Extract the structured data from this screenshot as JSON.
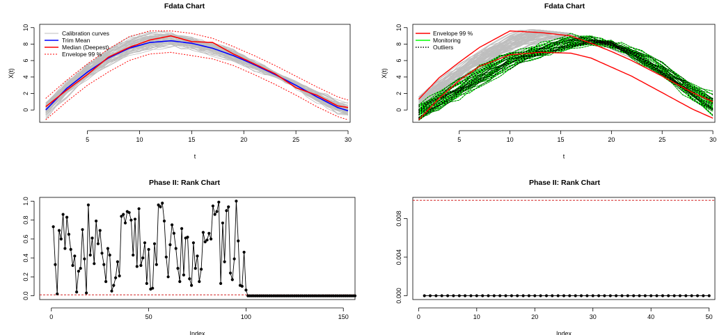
{
  "colors": {
    "calibration": "#bebebe",
    "trim_mean": "#0000ff",
    "median": "#ff0000",
    "envelope": "#ff0000",
    "monitoring": "#00ff00",
    "outliers": "#000000",
    "rank_line": "#000000",
    "limit_line": "#cd0000"
  },
  "chart_data": [
    {
      "type": "line",
      "title": "Fdata Chart",
      "xlabel": "t",
      "ylabel": "X(t)",
      "xlim": [
        1,
        30
      ],
      "ylim": [
        -1.5,
        10
      ],
      "xticks": [
        "5",
        "10",
        "15",
        "20",
        "25",
        "30"
      ],
      "yticks": [
        "0",
        "2",
        "4",
        "6",
        "8",
        "10"
      ],
      "legend": {
        "position": "top-left",
        "entries": [
          "Calibration curves",
          "Trim Mean",
          "Median (Deepest)",
          "Envelope 99 %"
        ]
      },
      "x": [
        1,
        3,
        5,
        7,
        9,
        11,
        13,
        15,
        17,
        19,
        21,
        23,
        25,
        27,
        29,
        30
      ],
      "series": [
        {
          "name": "Trim Mean",
          "values": [
            0.0,
            2.6,
            4.6,
            6.3,
            7.5,
            8.2,
            8.4,
            8.1,
            7.5,
            6.6,
            5.5,
            4.3,
            3.0,
            1.6,
            0.3,
            -0.1
          ]
        },
        {
          "name": "Median (Deepest)",
          "values": [
            0.4,
            2.4,
            4.3,
            6.4,
            7.6,
            8.5,
            9.0,
            8.3,
            8.2,
            6.8,
            5.6,
            4.4,
            2.7,
            1.8,
            0.5,
            0.3
          ]
        },
        {
          "name": "Envelope 99 % upper",
          "values": [
            1.4,
            3.6,
            5.6,
            7.4,
            8.9,
            9.6,
            9.6,
            9.3,
            8.7,
            7.7,
            6.6,
            5.4,
            4.1,
            2.8,
            1.6,
            1.2
          ]
        },
        {
          "name": "Envelope 99 % lower",
          "values": [
            -1.2,
            1.0,
            3.0,
            4.6,
            6.0,
            6.8,
            7.0,
            6.6,
            6.2,
            5.4,
            4.3,
            3.1,
            1.8,
            0.4,
            -0.8,
            -1.2
          ]
        }
      ]
    },
    {
      "type": "line",
      "title": "Fdata Chart",
      "xlabel": "t",
      "ylabel": "X(t)",
      "xlim": [
        1,
        30
      ],
      "ylim": [
        -1.5,
        10
      ],
      "xticks": [
        "5",
        "10",
        "15",
        "20",
        "25",
        "30"
      ],
      "yticks": [
        "0",
        "2",
        "4",
        "6",
        "8",
        "10"
      ],
      "legend": {
        "position": "top-left",
        "entries": [
          "Envelope 99 %",
          "Monitoring",
          "Outliers"
        ]
      },
      "x": [
        1,
        3,
        5,
        7,
        10,
        13,
        16,
        18,
        20,
        22,
        25,
        28,
        30
      ],
      "series": [
        {
          "name": "Envelope 99 % upper",
          "values": [
            1.3,
            3.9,
            5.8,
            7.6,
            9.6,
            9.4,
            9.0,
            8.1,
            7.1,
            6.0,
            4.1,
            2.1,
            1.0
          ]
        },
        {
          "name": "Envelope 99 % lower",
          "values": [
            -1.2,
            1.4,
            3.6,
            5.3,
            6.7,
            7.0,
            6.9,
            6.3,
            5.2,
            4.1,
            2.1,
            0.1,
            -1.0
          ]
        },
        {
          "name": "Monitoring (center)",
          "values": [
            -0.3,
            1.1,
            2.6,
            4.0,
            6.0,
            7.2,
            8.2,
            8.4,
            8.0,
            6.9,
            4.8,
            2.2,
            0.7
          ]
        }
      ]
    },
    {
      "type": "scatter",
      "title": "Phase II: Rank Chart",
      "xlabel": "Index",
      "ylabel": "",
      "xlim": [
        0,
        150
      ],
      "ylim": [
        0,
        1
      ],
      "xticks": [
        "0",
        "50",
        "100",
        "150"
      ],
      "yticks": [
        "0.0",
        "0.2",
        "0.4",
        "0.6",
        "0.8",
        "1.0"
      ],
      "control_limit": 0.01,
      "values": [
        0.73,
        0.33,
        0.02,
        0.69,
        0.6,
        0.86,
        0.5,
        0.83,
        0.65,
        0.49,
        0.32,
        0.42,
        0.04,
        0.26,
        0.29,
        0.7,
        0.39,
        0.03,
        0.96,
        0.43,
        0.61,
        0.34,
        0.79,
        0.55,
        0.69,
        0.45,
        0.33,
        0.15,
        0.5,
        0.43,
        0.05,
        0.11,
        0.19,
        0.36,
        0.21,
        0.84,
        0.86,
        0.77,
        0.89,
        0.88,
        0.8,
        0.43,
        0.81,
        0.31,
        0.92,
        0.32,
        0.4,
        0.56,
        0.13,
        0.49,
        0.07,
        0.08,
        0.55,
        0.33,
        0.96,
        0.94,
        0.98,
        0.79,
        0.41,
        0.2,
        0.54,
        0.75,
        0.66,
        0.5,
        0.29,
        0.15,
        0.71,
        0.22,
        0.61,
        0.62,
        0.18,
        0.11,
        0.56,
        0.29,
        0.42,
        0.15,
        0.28,
        0.67,
        0.57,
        0.59,
        0.66,
        0.6,
        0.95,
        0.86,
        0.89,
        0.99,
        0.13,
        0.77,
        0.36,
        0.9,
        0.94,
        0.24,
        0.17,
        0.39,
        1.0,
        0.58,
        0.11,
        0.1,
        0.46,
        0.06,
        0,
        0,
        0,
        0,
        0,
        0,
        0,
        0,
        0,
        0,
        0,
        0,
        0,
        0,
        0,
        0,
        0,
        0,
        0,
        0,
        0,
        0,
        0,
        0,
        0,
        0,
        0,
        0,
        0,
        0,
        0,
        0,
        0,
        0,
        0,
        0,
        0,
        0,
        0,
        0,
        0,
        0,
        0,
        0,
        0,
        0,
        0,
        0,
        0,
        0,
        0,
        0,
        0,
        0,
        0,
        0
      ]
    },
    {
      "type": "scatter",
      "title": "Phase II: Rank Chart",
      "xlabel": "Index",
      "ylabel": "",
      "xlim": [
        1,
        50
      ],
      "ylim": [
        0,
        0.01
      ],
      "xticks": [
        "0",
        "10",
        "20",
        "30",
        "40",
        "50"
      ],
      "yticks": [
        "0.000",
        "0.004",
        "0.008"
      ],
      "control_limit": 0.0099,
      "values": [
        0,
        0,
        0,
        0,
        0,
        0,
        0,
        0,
        0,
        0,
        0,
        0,
        0,
        0,
        0,
        0,
        0,
        0,
        0,
        0,
        0,
        0,
        0,
        0,
        0,
        0,
        0,
        0,
        0,
        0,
        0,
        0,
        0,
        0,
        0,
        0,
        0,
        0,
        0,
        0,
        0,
        0,
        0,
        0,
        0,
        0,
        0,
        0,
        0,
        0
      ]
    }
  ]
}
